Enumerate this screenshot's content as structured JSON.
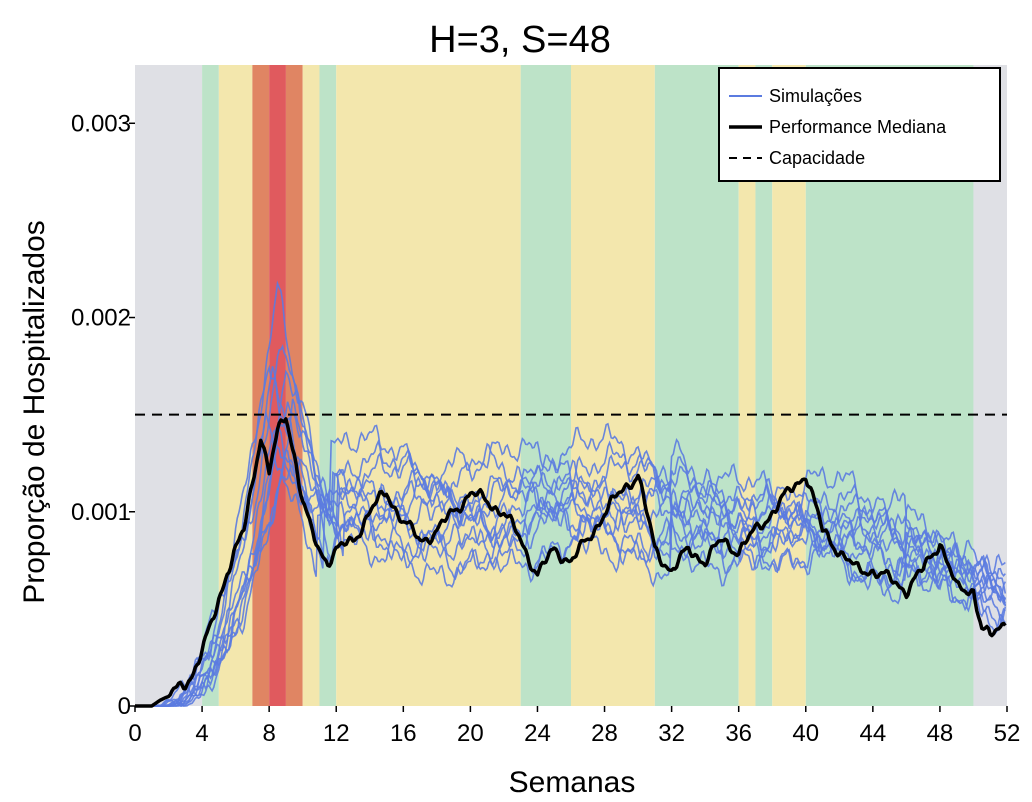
{
  "chart_data": {
    "type": "line",
    "title": "H=3, S=48",
    "xlabel": "Semanas",
    "ylabel": "Proporção de Hospitalizados",
    "xlim": [
      0,
      52
    ],
    "ylim": [
      0,
      0.0033
    ],
    "x_ticks": [
      0,
      4,
      8,
      12,
      16,
      20,
      24,
      28,
      32,
      36,
      40,
      44,
      48,
      52
    ],
    "y_ticks": [
      {
        "value": 0,
        "label": "0"
      },
      {
        "value": 0.001,
        "label": "0.001"
      },
      {
        "value": 0.002,
        "label": "0.002"
      },
      {
        "value": 0.003,
        "label": "0.003"
      }
    ],
    "grid": false,
    "legend": {
      "position": "top-right",
      "entries": [
        {
          "label": "Simulações",
          "style": "solid",
          "color": "#5b7be0"
        },
        {
          "label": "Performance Mediana",
          "style": "solid-bold",
          "color": "#000000"
        },
        {
          "label": "Capacidade",
          "style": "dashed",
          "color": "#000000"
        }
      ]
    },
    "capacity": 0.0015,
    "background_bands": [
      {
        "x0": 0,
        "x1": 4,
        "level": "none"
      },
      {
        "x0": 4,
        "x1": 5,
        "level": "green"
      },
      {
        "x0": 5,
        "x1": 7,
        "level": "yellow"
      },
      {
        "x0": 7,
        "x1": 8,
        "level": "orange"
      },
      {
        "x0": 8,
        "x1": 9,
        "level": "red"
      },
      {
        "x0": 9,
        "x1": 10,
        "level": "orange"
      },
      {
        "x0": 10,
        "x1": 11,
        "level": "yellow"
      },
      {
        "x0": 11,
        "x1": 12,
        "level": "green"
      },
      {
        "x0": 12,
        "x1": 23,
        "level": "yellow"
      },
      {
        "x0": 23,
        "x1": 26,
        "level": "green"
      },
      {
        "x0": 26,
        "x1": 31,
        "level": "yellow"
      },
      {
        "x0": 31,
        "x1": 36,
        "level": "green"
      },
      {
        "x0": 36,
        "x1": 37,
        "level": "yellow"
      },
      {
        "x0": 37,
        "x1": 38,
        "level": "green"
      },
      {
        "x0": 38,
        "x1": 40,
        "level": "yellow"
      },
      {
        "x0": 40,
        "x1": 50,
        "level": "green"
      },
      {
        "x0": 50,
        "x1": 52,
        "level": "none"
      }
    ],
    "band_colors": {
      "none": "#dfe0e5",
      "green": "#bde3c8",
      "yellow": "#f3e7ad",
      "orange": "#e08563",
      "red": "#e05a5e"
    },
    "median_series": {
      "name": "Performance Mediana",
      "x": [
        0,
        1,
        1.5,
        2,
        2.5,
        3,
        3.5,
        4,
        4.5,
        5,
        5.5,
        6,
        6.5,
        7,
        7.5,
        8,
        8.5,
        9,
        9.5,
        10,
        10.5,
        11,
        11.5,
        12,
        13,
        14,
        15,
        16,
        17,
        18,
        19,
        20,
        21,
        22,
        23,
        24,
        25,
        26,
        27,
        28,
        29,
        30,
        31,
        32,
        33,
        34,
        35,
        36,
        37,
        38,
        39,
        40,
        41,
        42,
        43,
        44,
        45,
        46,
        47,
        48,
        49,
        50,
        50.5,
        51,
        51.5,
        52
      ],
      "y": [
        0,
        0,
        3e-05,
        5e-05,
        8e-05,
        0.00012,
        0.00018,
        0.00028,
        0.0004,
        0.00055,
        0.0007,
        0.0008,
        0.0009,
        0.00115,
        0.0014,
        0.0012,
        0.0014,
        0.0015,
        0.0013,
        0.00105,
        0.0009,
        0.0008,
        0.00075,
        0.0008,
        0.00085,
        0.001,
        0.0011,
        0.00095,
        0.00085,
        0.0009,
        0.001,
        0.0011,
        0.00105,
        0.001,
        0.00085,
        0.00068,
        0.0008,
        0.00075,
        0.00085,
        0.001,
        0.0011,
        0.0012,
        0.0008,
        0.0007,
        0.0008,
        0.00075,
        0.00085,
        0.0008,
        0.0009,
        0.001,
        0.0011,
        0.0012,
        0.0009,
        0.0008,
        0.0007,
        0.0007,
        0.00065,
        0.0006,
        0.0007,
        0.00085,
        0.0006,
        0.0006,
        0.0004,
        0.00035,
        0.0004,
        0.00045
      ]
    },
    "simulation_series": [
      {
        "peak_x": 8.5,
        "peak_y": 0.00215,
        "start_x": 1.0,
        "mid_level": 0.00095,
        "late_level": 0.00075,
        "end_level": 0.00055,
        "phase": 0.3
      },
      {
        "peak_x": 8.8,
        "peak_y": 0.0019,
        "start_x": 1.6,
        "mid_level": 0.0011,
        "late_level": 0.0009,
        "end_level": 0.0006,
        "phase": 1.2
      },
      {
        "peak_x": 8.2,
        "peak_y": 0.0017,
        "start_x": 1.3,
        "mid_level": 0.0009,
        "late_level": 0.0008,
        "end_level": 0.0005,
        "phase": 2.1
      },
      {
        "peak_x": 9.1,
        "peak_y": 0.0016,
        "start_x": 2.0,
        "mid_level": 0.00105,
        "late_level": 0.00085,
        "end_level": 0.00065,
        "phase": 0.9
      },
      {
        "peak_x": 7.8,
        "peak_y": 0.00145,
        "start_x": 1.1,
        "mid_level": 0.00085,
        "late_level": 0.0007,
        "end_level": 0.00045,
        "phase": 2.8
      },
      {
        "peak_x": 8.6,
        "peak_y": 0.00135,
        "start_x": 1.8,
        "mid_level": 0.0012,
        "late_level": 0.001,
        "end_level": 0.0006,
        "phase": 1.7
      },
      {
        "peak_x": 9.4,
        "peak_y": 0.0015,
        "start_x": 2.2,
        "mid_level": 0.001,
        "late_level": 0.00075,
        "end_level": 0.0004,
        "phase": 3.5
      },
      {
        "peak_x": 8.0,
        "peak_y": 0.0018,
        "start_x": 1.5,
        "mid_level": 0.00095,
        "late_level": 0.0009,
        "end_level": 0.0007,
        "phase": 4.2
      },
      {
        "peak_x": 8.9,
        "peak_y": 0.00125,
        "start_x": 1.2,
        "mid_level": 0.0011,
        "late_level": 0.00095,
        "end_level": 0.0005,
        "phase": 5.0
      },
      {
        "peak_x": 8.4,
        "peak_y": 0.0014,
        "start_x": 2.4,
        "mid_level": 0.0009,
        "late_level": 0.0008,
        "end_level": 0.00055,
        "phase": 0.6
      },
      {
        "peak_x": 9.0,
        "peak_y": 0.00175,
        "start_x": 1.7,
        "mid_level": 0.001,
        "late_level": 0.00085,
        "end_level": 0.0006,
        "phase": 2.5
      },
      {
        "peak_x": 8.7,
        "peak_y": 0.0012,
        "start_x": 1.4,
        "mid_level": 0.00115,
        "late_level": 0.0007,
        "end_level": 0.00065,
        "phase": 3.9
      }
    ]
  }
}
